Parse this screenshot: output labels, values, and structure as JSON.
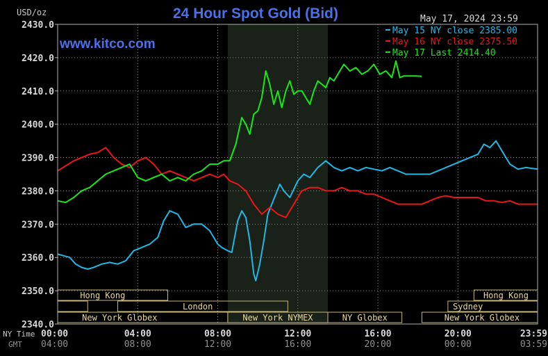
{
  "chart_data": {
    "type": "line",
    "title": "24 Hour Spot Gold (Bid)",
    "ylabel": "USD/oz",
    "watermark": "www.kitco.com",
    "timestamp": "May 17, 2024 23:59",
    "ylim": [
      2340,
      2430
    ],
    "y_ticks": [
      "2430.0",
      "2420.0",
      "2410.0",
      "2400.0",
      "2390.0",
      "2380.0",
      "2370.0",
      "2360.0",
      "2350.0",
      "2340.0"
    ],
    "xlim": [
      0,
      23.98
    ],
    "x_row_labels": {
      "ny": "NY Time",
      "gmt": "GMT"
    },
    "x_ticks": [
      {
        "pos": 0,
        "ny": "00:00",
        "gmt": "04:00"
      },
      {
        "pos": 4,
        "ny": "04:00",
        "gmt": "08:00"
      },
      {
        "pos": 8,
        "ny": "08:00",
        "gmt": "12:00"
      },
      {
        "pos": 12,
        "ny": "12:00",
        "gmt": "16:00"
      },
      {
        "pos": 16,
        "ny": "16:00",
        "gmt": "20:00"
      },
      {
        "pos": 20,
        "ny": "20:00",
        "gmt": "00:00"
      },
      {
        "pos": 23.98,
        "ny": "23:59",
        "gmt": "03:59"
      }
    ],
    "highlight_range": [
      8.5,
      13.5
    ],
    "legend_position": "top-right",
    "series": [
      {
        "name": "May 15 NY close 2385.00",
        "color": "#20b8e8",
        "x": [
          0,
          0.3,
          0.6,
          0.9,
          1.2,
          1.5,
          1.8,
          2.2,
          2.6,
          3,
          3.4,
          3.8,
          4.2,
          4.6,
          5,
          5.3,
          5.6,
          6,
          6.4,
          6.8,
          7.2,
          7.6,
          8,
          8.2,
          8.5,
          8.7,
          9,
          9.2,
          9.4,
          9.6,
          9.8,
          9.9,
          10.1,
          10.3,
          10.5,
          10.7,
          10.9,
          11.1,
          11.3,
          11.6,
          12,
          12.3,
          12.6,
          13,
          13.4,
          13.8,
          14.2,
          14.6,
          15,
          15.4,
          15.8,
          16.2,
          16.6,
          17,
          17.4,
          17.8,
          18.2,
          18.6,
          19,
          19.4,
          19.8,
          20.2,
          20.6,
          21,
          21.3,
          21.6,
          21.9,
          22.2,
          22.6,
          23,
          23.4,
          23.98
        ],
        "values": [
          2361,
          2360.5,
          2360,
          2358,
          2357,
          2356.5,
          2357,
          2358,
          2358.5,
          2358,
          2359,
          2362,
          2363,
          2364,
          2366,
          2371,
          2374,
          2373,
          2369,
          2370,
          2370,
          2368,
          2364,
          2363,
          2362,
          2361.5,
          2371,
          2374,
          2372,
          2365,
          2355,
          2353,
          2358,
          2365,
          2373,
          2376,
          2379,
          2382,
          2380,
          2378,
          2383,
          2385,
          2384,
          2387,
          2389,
          2387,
          2386,
          2387,
          2386,
          2387,
          2386.5,
          2386,
          2387,
          2386,
          2385,
          2385,
          2385,
          2385,
          2386,
          2387,
          2388,
          2389,
          2390,
          2391,
          2394,
          2393,
          2395,
          2392,
          2388,
          2386.5,
          2387,
          2386.5
        ]
      },
      {
        "name": "May 16 NY close 2375.50",
        "color": "#e81818",
        "x": [
          0,
          0.4,
          0.8,
          1.2,
          1.6,
          2,
          2.4,
          2.8,
          3.2,
          3.6,
          4,
          4.4,
          4.8,
          5.2,
          5.6,
          6,
          6.4,
          6.8,
          7.2,
          7.6,
          8,
          8.3,
          8.6,
          9,
          9.4,
          9.8,
          10.2,
          10.6,
          11,
          11.4,
          11.8,
          12.2,
          12.6,
          13,
          13.4,
          13.8,
          14.2,
          14.6,
          15,
          15.4,
          15.8,
          16.2,
          16.6,
          17,
          17.4,
          17.8,
          18.2,
          18.6,
          19,
          19.4,
          19.8,
          20.2,
          20.6,
          21,
          21.4,
          21.8,
          22.2,
          22.6,
          23,
          23.4,
          23.98
        ],
        "values": [
          2386,
          2387.5,
          2389,
          2390,
          2391,
          2391.5,
          2393,
          2390,
          2388,
          2387,
          2389,
          2390,
          2388,
          2385,
          2386,
          2385,
          2384,
          2383,
          2384,
          2385,
          2384,
          2385,
          2383,
          2382,
          2380,
          2376,
          2373,
          2375,
          2373,
          2372,
          2376,
          2380,
          2381,
          2381,
          2380,
          2380,
          2381,
          2380,
          2380,
          2379,
          2379,
          2378,
          2377,
          2376,
          2376,
          2376,
          2376,
          2377,
          2378,
          2378.5,
          2378,
          2378,
          2378,
          2378,
          2377,
          2377,
          2376.5,
          2377,
          2376,
          2376,
          2376
        ]
      },
      {
        "name": "May 17 Last 2414.40",
        "color": "#18e818",
        "x": [
          0,
          0.4,
          0.8,
          1.2,
          1.6,
          2,
          2.4,
          2.8,
          3.2,
          3.6,
          4,
          4.4,
          4.8,
          5.2,
          5.6,
          6,
          6.4,
          6.8,
          7.2,
          7.6,
          8,
          8.3,
          8.6,
          8.9,
          9.2,
          9.4,
          9.6,
          9.8,
          10,
          10.2,
          10.4,
          10.6,
          10.8,
          11,
          11.2,
          11.4,
          11.6,
          11.8,
          12,
          12.2,
          12.4,
          12.6,
          12.8,
          13,
          13.2,
          13.4,
          13.6,
          13.8,
          14,
          14.3,
          14.6,
          14.9,
          15.2,
          15.5,
          15.8,
          16.1,
          16.4,
          16.7,
          16.9,
          17.1,
          17.3,
          17.6,
          17.9,
          18.2
        ],
        "values": [
          2377,
          2376.5,
          2378,
          2380,
          2381,
          2383,
          2385,
          2386,
          2387,
          2388,
          2384,
          2383,
          2384,
          2385,
          2383,
          2384,
          2383,
          2385,
          2386,
          2388,
          2388,
          2389,
          2389,
          2394,
          2402,
          2400,
          2397,
          2403,
          2404,
          2408,
          2416,
          2412,
          2406,
          2410,
          2405,
          2410,
          2413,
          2409,
          2410,
          2410,
          2408,
          2406,
          2410,
          2413,
          2412,
          2411,
          2414,
          2413,
          2415,
          2418,
          2416,
          2417,
          2415,
          2416,
          2418,
          2415,
          2416,
          2414,
          2419,
          2414,
          2414.5,
          2414.5,
          2414.5,
          2414.4
        ]
      }
    ],
    "sessions": [
      {
        "label": "Hong Kong",
        "row": 0,
        "start": 0,
        "end": 5.5,
        "text_at": 2.25
      },
      {
        "label": "",
        "row": 1,
        "start": 0,
        "end": 1.5,
        "text_at": 0.75
      },
      {
        "label": "London",
        "row": 1,
        "start": 3,
        "end": 11.5,
        "text_at": 7
      },
      {
        "label": "New York Globex",
        "row": 2,
        "start": 0,
        "end": 8.5,
        "text_at": 3.1
      },
      {
        "label": "New York NYMEX",
        "row": 2,
        "start": 8.5,
        "end": 13.5,
        "text_at": 11
      },
      {
        "label": "NY Globex",
        "row": 2,
        "start": 13.5,
        "end": 17.2,
        "text_at": 15.35
      },
      {
        "label": "Hong Kong",
        "row": 0,
        "start": 20.8,
        "end": 23.98,
        "text_at": 22.4
      },
      {
        "label": "Sydney",
        "row": 1,
        "start": 19.5,
        "end": 23.98,
        "text_at": 20.5
      },
      {
        "label": "New York Globex",
        "row": 2,
        "start": 18.2,
        "end": 23.98,
        "text_at": 21.2
      }
    ]
  }
}
